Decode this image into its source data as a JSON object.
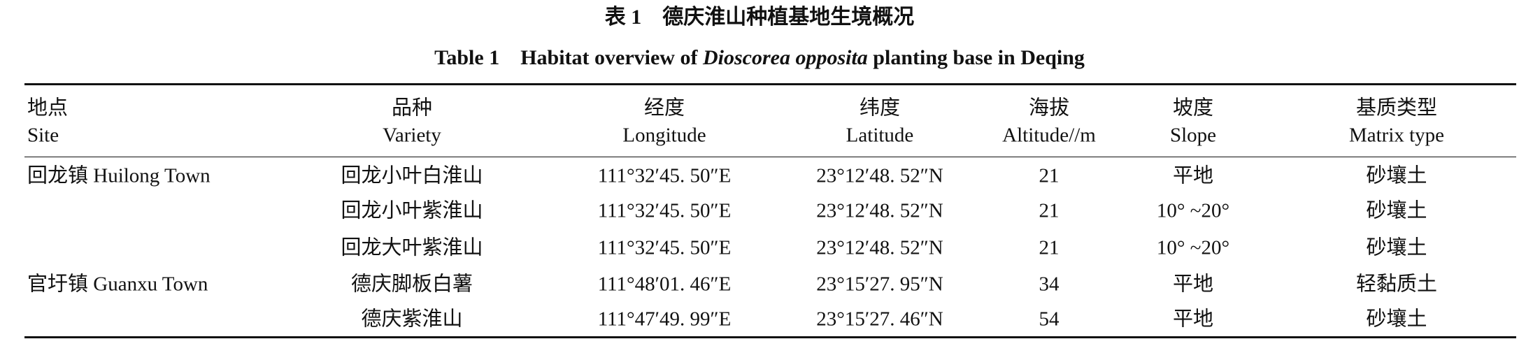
{
  "title_cn": "表 1　德庆淮山种植基地生境概况",
  "title_en": {
    "label": "Table 1",
    "pre": "Habitat overview of",
    "italic": "Dioscorea opposita",
    "post": "planting base in Deqing"
  },
  "table": {
    "headers": [
      {
        "cn": "地点",
        "en": "Site"
      },
      {
        "cn": "品种",
        "en": "Variety"
      },
      {
        "cn": "经度",
        "en": "Longitude"
      },
      {
        "cn": "纬度",
        "en": "Latitude"
      },
      {
        "cn": "海拔",
        "en": "Altitude//m"
      },
      {
        "cn": "坡度",
        "en": "Slope"
      },
      {
        "cn": "基质类型",
        "en": "Matrix type"
      }
    ],
    "rows": [
      [
        "回龙镇 Huilong Town",
        "回龙小叶白淮山",
        "111°32′45. 50″E",
        "23°12′48. 52″N",
        21,
        "平地",
        "砂壤土"
      ],
      [
        null,
        "回龙小叶紫淮山",
        "111°32′45. 50″E",
        "23°12′48. 52″N",
        21,
        "10° ~20°",
        "砂壤土"
      ],
      [
        null,
        "回龙大叶紫淮山",
        "111°32′45. 50″E",
        "23°12′48. 52″N",
        21,
        "10° ~20°",
        "砂壤土"
      ],
      [
        "官圩镇 Guanxu Town",
        "德庆脚板白薯",
        "111°48′01. 46″E",
        "23°15′27. 95″N",
        34,
        "平地",
        "轻黏质土"
      ],
      [
        null,
        "德庆紫淮山",
        "111°47′49. 99″E",
        "23°15′27. 46″N",
        54,
        "平地",
        "砂壤土"
      ]
    ]
  }
}
